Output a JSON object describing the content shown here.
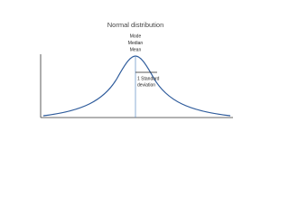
{
  "title": "Normal distribution",
  "peak_labels": [
    "Mode",
    "Median",
    "Mean"
  ],
  "deviation_label": [
    "1 Standard",
    "deviation"
  ]
}
